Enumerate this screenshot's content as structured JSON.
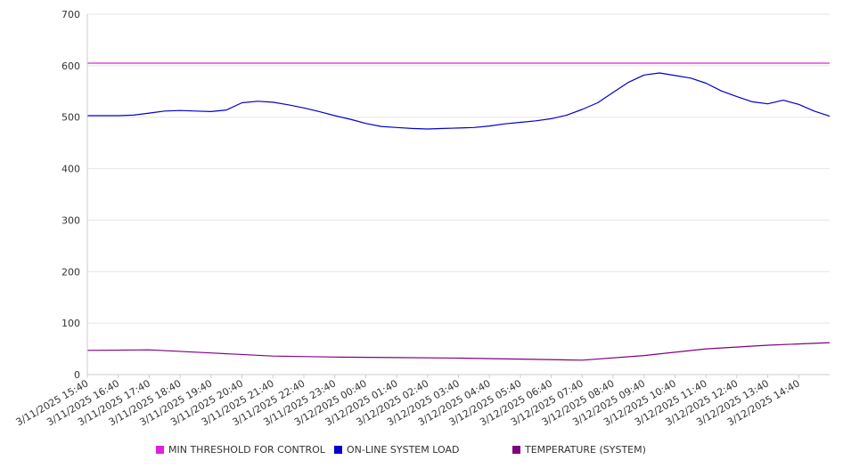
{
  "chart_data": {
    "type": "line",
    "title": "",
    "xlabel": "",
    "ylabel": "",
    "ylim": [
      0,
      700
    ],
    "yticks": [
      0,
      100,
      200,
      300,
      400,
      500,
      600,
      700
    ],
    "grid": true,
    "legend_position": "bottom",
    "x_tick_labels": [
      "3/11/2025 15:40",
      "3/11/2025 16:40",
      "3/11/2025 17:40",
      "3/11/2025 18:40",
      "3/11/2025 19:40",
      "3/11/2025 20:40",
      "3/11/2025 21:40",
      "3/11/2025 22:40",
      "3/11/2025 23:40",
      "3/12/2025 00:40",
      "3/12/2025 01:40",
      "3/12/2025 02:40",
      "3/12/2025 03:40",
      "3/12/2025 04:40",
      "3/12/2025 05:40",
      "3/12/2025 06:40",
      "3/12/2025 07:40",
      "3/12/2025 08:40",
      "3/12/2025 09:40",
      "3/12/2025 10:40",
      "3/12/2025 11:40",
      "3/12/2025 12:40",
      "3/12/2025 13:40",
      "3/12/2025 14:40"
    ],
    "x_range": [
      "3/11/2025 15:40",
      "3/12/2025 15:40"
    ],
    "series": [
      {
        "name": "MIN THRESHOLD FOR CONTROL",
        "color": "#e020e0",
        "x": [
          "3/11/2025 15:40",
          "3/12/2025 15:40"
        ],
        "values": [
          605,
          605
        ]
      },
      {
        "name": "ON-LINE SYSTEM LOAD",
        "color": "#0000cc",
        "x": [
          "3/11/2025 15:40",
          "3/11/2025 16:10",
          "3/11/2025 16:40",
          "3/11/2025 17:10",
          "3/11/2025 17:40",
          "3/11/2025 18:10",
          "3/11/2025 18:40",
          "3/11/2025 19:10",
          "3/11/2025 19:40",
          "3/11/2025 20:10",
          "3/11/2025 20:40",
          "3/11/2025 21:10",
          "3/11/2025 21:40",
          "3/11/2025 22:10",
          "3/11/2025 22:40",
          "3/11/2025 23:10",
          "3/11/2025 23:40",
          "3/12/2025 00:10",
          "3/12/2025 00:40",
          "3/12/2025 01:10",
          "3/12/2025 01:40",
          "3/12/2025 02:10",
          "3/12/2025 02:40",
          "3/12/2025 03:10",
          "3/12/2025 03:40",
          "3/12/2025 04:10",
          "3/12/2025 04:40",
          "3/12/2025 05:10",
          "3/12/2025 05:40",
          "3/12/2025 06:10",
          "3/12/2025 06:40",
          "3/12/2025 07:10",
          "3/12/2025 07:40",
          "3/12/2025 08:10",
          "3/12/2025 08:40",
          "3/12/2025 09:10",
          "3/12/2025 09:40",
          "3/12/2025 10:10",
          "3/12/2025 10:40",
          "3/12/2025 11:10",
          "3/12/2025 11:40",
          "3/12/2025 12:10",
          "3/12/2025 12:40",
          "3/12/2025 13:10",
          "3/12/2025 13:40",
          "3/12/2025 14:10",
          "3/12/2025 14:40",
          "3/12/2025 15:10",
          "3/12/2025 15:40"
        ],
        "values": [
          503,
          503,
          503,
          504,
          508,
          512,
          513,
          512,
          511,
          514,
          528,
          531,
          529,
          524,
          518,
          511,
          503,
          496,
          488,
          482,
          480,
          478,
          477,
          478,
          479,
          480,
          483,
          487,
          490,
          493,
          497,
          504,
          515,
          528,
          548,
          568,
          582,
          586,
          581,
          576,
          566,
          551,
          540,
          530,
          526,
          533,
          525,
          512,
          502
        ]
      },
      {
        "name": "TEMPERATURE (SYSTEM)",
        "color": "#800080",
        "x": [
          "3/11/2025 15:40",
          "3/11/2025 17:40",
          "3/11/2025 19:40",
          "3/11/2025 21:40",
          "3/11/2025 23:40",
          "3/12/2025 01:40",
          "3/12/2025 03:40",
          "3/12/2025 05:40",
          "3/12/2025 07:40",
          "3/12/2025 09:40",
          "3/12/2025 11:40",
          "3/12/2025 13:40",
          "3/12/2025 15:40"
        ],
        "values": [
          47,
          48,
          42,
          36,
          34,
          33,
          32,
          30,
          28,
          37,
          50,
          57,
          62
        ]
      }
    ]
  }
}
